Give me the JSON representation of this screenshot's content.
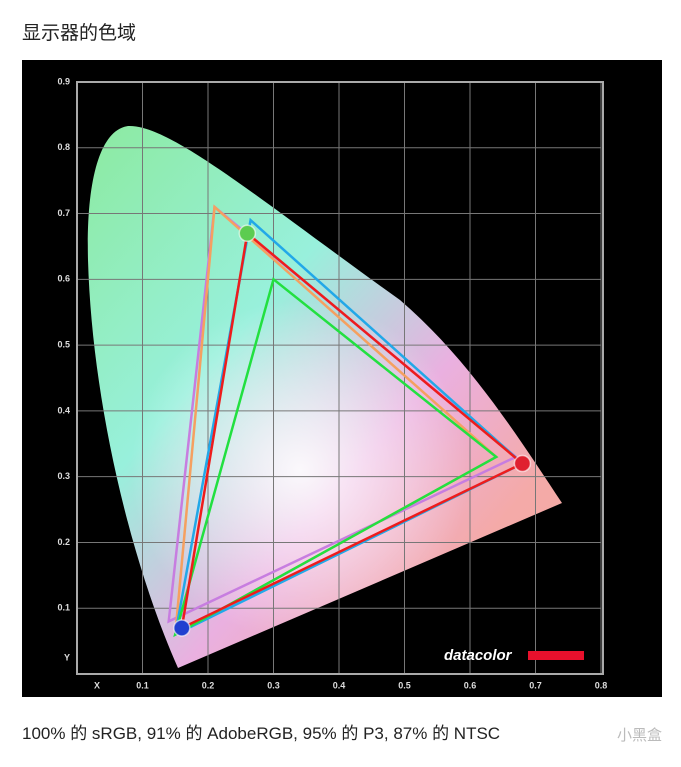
{
  "heading": "显示器的色域",
  "caption": "100% 的 sRGB, 91% 的 AdobeRGB, 95% 的 P3, 87% 的 NTSC",
  "watermark": "小黑盒",
  "chart_data": {
    "type": "gamut",
    "logo": "datacolor",
    "xlim": [
      0,
      0.8
    ],
    "ylim": [
      0,
      0.9
    ],
    "xticks": [
      {
        "value": 0,
        "label": "X"
      },
      0.1,
      0.2,
      0.3,
      0.4,
      0.5,
      0.6,
      0.7,
      0.8
    ],
    "yticks": [
      {
        "value": 0,
        "label": "Y"
      },
      0.1,
      0.2,
      0.3,
      0.4,
      0.5,
      0.6,
      0.7,
      0.8,
      0.9
    ],
    "grid": true,
    "series": [
      {
        "color": "#c77de0",
        "x": [
          0.21,
          0.67,
          0.14
        ],
        "values": [
          0.71,
          0.33,
          0.08
        ]
      },
      {
        "color": "#f5a060",
        "x": [
          0.21,
          0.64,
          0.15
        ],
        "values": [
          0.71,
          0.33,
          0.06
        ]
      },
      {
        "color": "#22a8e8",
        "x": [
          0.265,
          0.68,
          0.15
        ],
        "values": [
          0.69,
          0.32,
          0.06
        ]
      },
      {
        "color": "#22e040",
        "x": [
          0.3,
          0.64,
          0.15
        ],
        "values": [
          0.6,
          0.33,
          0.06
        ]
      },
      {
        "color": "#ee1c1c",
        "x": [
          0.26,
          0.68,
          0.16
        ],
        "values": [
          0.67,
          0.32,
          0.07
        ],
        "markers": true,
        "marker_colors": [
          "#5ccc50",
          "#e02030",
          "#2040d0"
        ]
      }
    ]
  }
}
